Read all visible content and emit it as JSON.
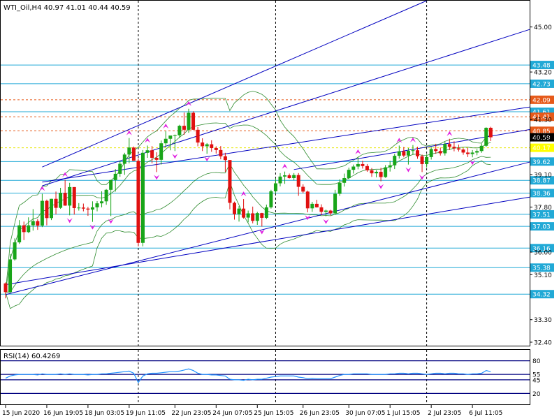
{
  "chart_data": [
    {
      "type": "candlestick",
      "title": "WTI_Oil,H4  40.97 41.01 40.44 40.59",
      "ylim": [
        32.26,
        46.05
      ],
      "price_ticks": [
        "45.00",
        "43.20",
        "41.30",
        "40.58",
        "39.10",
        "37.80",
        "36.00",
        "35.10",
        "33.30",
        "32.40"
      ],
      "price_tick_values": [
        45.0,
        43.2,
        41.3,
        40.58,
        39.1,
        37.8,
        36.0,
        35.1,
        33.3,
        32.4
      ],
      "current_price": "40.59",
      "time_labels": [
        "15 Jun 2020",
        "16 Jun 19:05",
        "18 Jun 03:05",
        "19 Jun 11:05",
        "22 Jun 23:05",
        "24 Jun 07:05",
        "25 Jun 15:05",
        "26 Jun 23:05",
        "30 Jun 07:05",
        "1 Jul 15:05",
        "2 Jul 23:05",
        "6 Jul 11:05"
      ],
      "time_label_index": [
        0,
        9,
        18,
        27,
        37,
        46,
        55,
        65,
        75,
        84,
        93,
        102
      ],
      "day_separators_index": [
        29,
        59,
        92
      ],
      "levels": [
        {
          "value": 43.48,
          "label": "43.48",
          "kind": "support-resistance"
        },
        {
          "value": 42.73,
          "label": "42.73",
          "kind": "support-resistance"
        },
        {
          "value": 42.09,
          "label": "42.09",
          "kind": "pivot"
        },
        {
          "value": 41.61,
          "label": "41.61",
          "kind": "support-resistance"
        },
        {
          "value": 41.41,
          "label": "41.41",
          "kind": "pivot"
        },
        {
          "value": 40.85,
          "label": "40.85",
          "kind": "pivot"
        },
        {
          "value": 40.17,
          "label": "40.17",
          "kind": "ask"
        },
        {
          "value": 39.62,
          "label": "39.62",
          "kind": "support-resistance"
        },
        {
          "value": 38.87,
          "label": "38.87",
          "kind": "support-resistance"
        },
        {
          "value": 38.36,
          "label": "38.36",
          "kind": "support-resistance"
        },
        {
          "value": 37.51,
          "label": "37.51",
          "kind": "support-resistance"
        },
        {
          "value": 37.03,
          "label": "37.03",
          "kind": "support-resistance"
        },
        {
          "value": 36.16,
          "label": "36.16",
          "kind": "support-resistance"
        },
        {
          "value": 35.38,
          "label": "35.38",
          "kind": "support-resistance"
        },
        {
          "value": 34.32,
          "label": "34.32",
          "kind": "support-resistance"
        }
      ],
      "candles": [
        [
          34.75,
          34.79,
          34.15,
          34.4
        ],
        [
          34.4,
          35.92,
          34.36,
          35.71
        ],
        [
          35.71,
          36.55,
          35.66,
          36.39
        ],
        [
          36.39,
          37.28,
          36.33,
          37.07
        ],
        [
          37.07,
          37.22,
          36.48,
          36.8
        ],
        [
          36.8,
          37.39,
          36.76,
          37.07
        ],
        [
          37.07,
          37.72,
          36.86,
          37.24
        ],
        [
          37.24,
          37.32,
          36.89,
          37.06
        ],
        [
          37.06,
          38.33,
          37.0,
          38.05
        ],
        [
          38.05,
          38.1,
          37.07,
          37.36
        ],
        [
          37.36,
          38.13,
          37.28,
          38.13
        ],
        [
          38.13,
          38.42,
          37.51,
          37.77
        ],
        [
          37.77,
          38.57,
          37.73,
          38.37
        ],
        [
          38.37,
          38.89,
          37.85,
          37.86
        ],
        [
          37.86,
          38.77,
          37.47,
          38.6
        ],
        [
          38.6,
          38.6,
          37.5,
          37.76
        ],
        [
          37.76,
          37.96,
          37.66,
          37.78
        ],
        [
          37.78,
          37.94,
          37.63,
          37.74
        ],
        [
          37.74,
          37.81,
          37.45,
          37.7
        ],
        [
          37.7,
          38.03,
          37.21,
          37.79
        ],
        [
          37.79,
          38.04,
          37.63,
          37.95
        ],
        [
          37.95,
          38.43,
          37.79,
          38.03
        ],
        [
          38.03,
          38.52,
          37.89,
          38.49
        ],
        [
          38.49,
          38.89,
          37.44,
          38.88
        ],
        [
          38.88,
          39.32,
          38.42,
          39.13
        ],
        [
          39.13,
          39.65,
          39.01,
          39.53
        ],
        [
          39.53,
          39.97,
          39.09,
          39.9
        ],
        [
          39.9,
          40.56,
          39.55,
          40.18
        ],
        [
          40.18,
          40.22,
          39.65,
          39.65
        ],
        [
          39.65,
          39.75,
          36.23,
          36.37
        ],
        [
          36.37,
          40.08,
          36.23,
          39.97
        ],
        [
          39.97,
          40.26,
          39.77,
          40.07
        ],
        [
          40.07,
          40.24,
          39.55,
          39.77
        ],
        [
          39.77,
          39.99,
          39.2,
          39.69
        ],
        [
          39.69,
          40.46,
          39.5,
          40.35
        ],
        [
          40.35,
          40.83,
          40.19,
          40.53
        ],
        [
          40.53,
          40.66,
          40.07,
          40.66
        ],
        [
          40.66,
          40.7,
          40.04,
          40.67
        ],
        [
          40.67,
          41.09,
          40.56,
          41.05
        ],
        [
          41.05,
          41.58,
          40.69,
          40.89
        ],
        [
          40.89,
          41.73,
          40.77,
          41.57
        ],
        [
          41.57,
          41.63,
          40.88,
          40.89
        ],
        [
          40.89,
          41.0,
          40.23,
          40.38
        ],
        [
          40.38,
          40.55,
          40.04,
          40.23
        ],
        [
          40.23,
          40.36,
          39.93,
          40.31
        ],
        [
          40.31,
          40.47,
          40.01,
          40.16
        ],
        [
          40.16,
          40.23,
          39.94,
          40.08
        ],
        [
          40.08,
          40.24,
          39.71,
          39.83
        ],
        [
          39.83,
          39.97,
          39.21,
          39.68
        ],
        [
          39.68,
          39.68,
          37.71,
          37.97
        ],
        [
          37.97,
          38.02,
          37.3,
          37.52
        ],
        [
          37.52,
          37.84,
          37.22,
          37.74
        ],
        [
          37.74,
          38.12,
          37.34,
          37.38
        ],
        [
          37.38,
          37.66,
          37.19,
          37.55
        ],
        [
          37.55,
          37.82,
          37.15,
          37.25
        ],
        [
          37.25,
          37.61,
          37.09,
          37.56
        ],
        [
          37.56,
          37.57,
          37.02,
          37.37
        ],
        [
          37.37,
          37.9,
          37.32,
          37.79
        ],
        [
          37.79,
          38.49,
          37.74,
          38.43
        ],
        [
          38.43,
          38.95,
          38.34,
          38.75
        ],
        [
          38.75,
          39.16,
          38.63,
          39.02
        ],
        [
          39.02,
          39.22,
          38.73,
          39.07
        ],
        [
          39.07,
          39.14,
          38.94,
          38.96
        ],
        [
          38.96,
          39.16,
          38.87,
          39.08
        ],
        [
          39.08,
          39.16,
          38.25,
          38.61
        ],
        [
          38.61,
          38.71,
          38.35,
          38.42
        ],
        [
          38.42,
          38.46,
          37.59,
          37.75
        ],
        [
          37.75,
          38.01,
          37.61,
          37.93
        ],
        [
          37.93,
          38.09,
          37.78,
          37.79
        ],
        [
          37.79,
          37.91,
          37.48,
          37.61
        ],
        [
          37.61,
          37.7,
          37.43,
          37.66
        ],
        [
          37.66,
          37.69,
          37.47,
          37.55
        ],
        [
          37.55,
          38.49,
          37.49,
          38.33
        ],
        [
          38.33,
          38.91,
          38.25,
          38.77
        ],
        [
          38.77,
          39.14,
          38.62,
          38.96
        ],
        [
          38.96,
          39.38,
          38.9,
          39.29
        ],
        [
          39.29,
          39.5,
          39.14,
          39.42
        ],
        [
          39.42,
          39.8,
          39.31,
          39.52
        ],
        [
          39.52,
          39.65,
          39.34,
          39.44
        ],
        [
          39.44,
          39.52,
          39.21,
          39.27
        ],
        [
          39.27,
          39.36,
          39.01,
          39.15
        ],
        [
          39.15,
          39.27,
          38.99,
          39.21
        ],
        [
          39.21,
          39.37,
          38.83,
          39.0
        ],
        [
          39.0,
          39.48,
          38.97,
          39.39
        ],
        [
          39.39,
          39.65,
          39.22,
          39.47
        ],
        [
          39.47,
          39.93,
          39.32,
          39.85
        ],
        [
          39.85,
          40.26,
          39.74,
          40.03
        ],
        [
          40.03,
          40.2,
          39.79,
          39.86
        ],
        [
          39.86,
          40.16,
          39.5,
          40.05
        ],
        [
          40.05,
          40.28,
          39.9,
          40.07
        ],
        [
          40.07,
          40.21,
          39.73,
          39.83
        ],
        [
          39.83,
          39.9,
          39.2,
          39.52
        ],
        [
          39.52,
          39.91,
          39.38,
          39.8
        ],
        [
          39.8,
          40.2,
          39.7,
          40.12
        ],
        [
          40.12,
          40.33,
          39.93,
          40.04
        ],
        [
          40.04,
          40.18,
          39.86,
          39.95
        ],
        [
          39.95,
          40.4,
          39.86,
          40.32
        ],
        [
          40.32,
          40.53,
          40.08,
          40.21
        ],
        [
          40.21,
          40.43,
          40.03,
          40.15
        ],
        [
          40.15,
          40.3,
          40.02,
          40.1
        ],
        [
          40.1,
          40.15,
          39.89,
          39.98
        ],
        [
          39.98,
          40.16,
          39.8,
          39.92
        ],
        [
          39.92,
          40.08,
          39.79,
          39.98
        ],
        [
          39.98,
          40.12,
          39.87,
          40.04
        ],
        [
          40.04,
          40.34,
          39.97,
          40.25
        ],
        [
          40.25,
          40.99,
          40.2,
          40.97
        ],
        [
          40.97,
          41.01,
          40.44,
          40.59
        ]
      ],
      "colors": {
        "bull": "#19a519",
        "bear": "#e01010",
        "bands": "#2e8b2e",
        "trend": "#0000c0",
        "level": "#21a9d6",
        "pivot": "#e65a1a",
        "fractal": "#e020e0",
        "rsi": "#1e90ff"
      }
    },
    {
      "type": "line",
      "title": "RSI(14) 60.4269",
      "ylim": [
        0,
        100
      ],
      "levels": [
        {
          "value": 80,
          "label": "80"
        },
        {
          "value": 55,
          "label": "55"
        },
        {
          "value": 45,
          "label": "45"
        },
        {
          "value": 20,
          "label": "20"
        }
      ],
      "values": [
        48,
        52,
        54,
        55,
        55,
        55,
        55,
        54,
        56,
        55,
        55,
        55,
        56,
        55,
        56,
        55,
        55,
        55,
        54,
        55,
        55,
        56,
        56,
        57,
        58,
        59,
        60,
        61,
        57,
        40,
        52,
        56,
        57,
        57,
        58,
        59,
        60,
        60,
        61,
        63,
        65,
        62,
        57,
        55,
        55,
        54,
        54,
        53,
        52,
        46,
        45,
        45,
        44,
        46,
        45,
        46,
        46,
        48,
        50,
        51,
        52,
        52,
        52,
        52,
        50,
        49,
        47,
        48,
        47,
        47,
        47,
        47,
        50,
        53,
        55,
        55,
        56,
        56,
        56,
        56,
        55,
        55,
        55,
        55,
        56,
        56,
        57,
        57,
        56,
        57,
        57,
        56,
        55,
        56,
        57,
        57,
        56,
        57,
        57,
        56,
        56,
        55,
        56,
        56,
        57,
        62,
        60
      ]
    }
  ]
}
